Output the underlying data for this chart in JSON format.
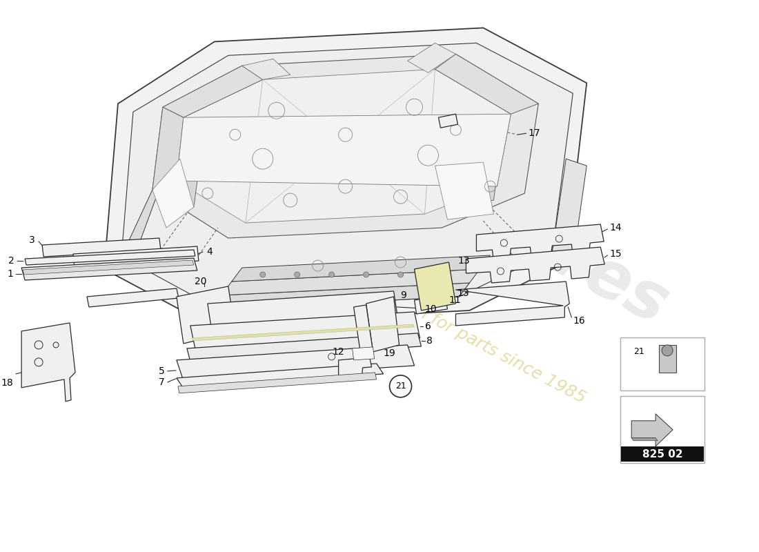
{
  "bg_color": "#ffffff",
  "part_number": "825 02",
  "watermark_color_text": "#c8c8c8",
  "watermark_color_year": "#d4c870",
  "line_color": "#2a2a2a",
  "part_color_fill": "#f0f0f0",
  "part_color_ec": "#2a2a2a",
  "car_fill": "#f5f5f5",
  "car_ec": "#3a3a3a",
  "label_fs": 10,
  "dashed_color": "#555555",
  "highlight_fill": "#e8e8b0"
}
